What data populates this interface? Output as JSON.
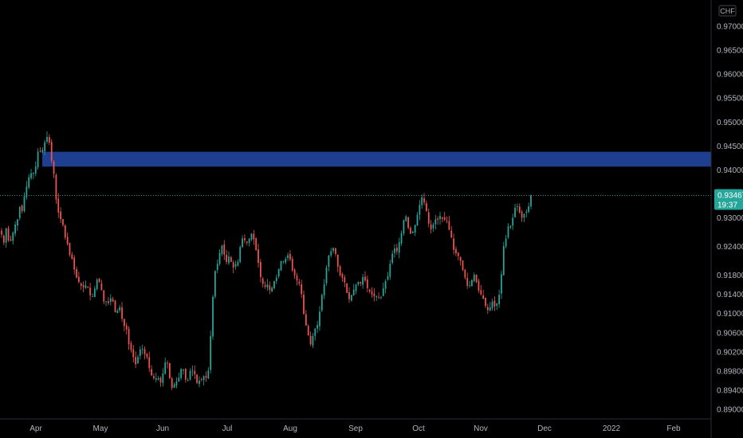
{
  "chart_data": {
    "type": "candlestick",
    "currency": "CHF",
    "ylim": [
      0.888,
      0.9755
    ],
    "y_ticks": [
      "0.97000",
      "0.96500",
      "0.96000",
      "0.95500",
      "0.95000",
      "0.94500",
      "0.94000",
      "0.93000",
      "0.92400",
      "0.91800",
      "0.91400",
      "0.91000",
      "0.90600",
      "0.90200",
      "0.89800",
      "0.89400",
      "0.89000"
    ],
    "x_ticks": [
      "Apr",
      "May",
      "Jun",
      "Jul",
      "Aug",
      "Sep",
      "Oct",
      "Nov",
      "Dec",
      "2022",
      "Feb"
    ],
    "last_price": "0.93467",
    "countdown": "19:37",
    "zone": {
      "low": 0.9407,
      "high": 0.9438,
      "color": "#1e3f8f"
    },
    "colors": {
      "up": "#26a69a",
      "down": "#ef5350",
      "background": "#000000",
      "axis_text": "#b2b5be",
      "price_label": "#26a69a"
    },
    "close": [
      0.9265,
      0.9248,
      0.9278,
      0.9253,
      0.9252,
      0.9269,
      0.9286,
      0.9297,
      0.9323,
      0.9314,
      0.9345,
      0.9365,
      0.9385,
      0.9393,
      0.9394,
      0.9407,
      0.9438,
      0.9438,
      0.9442,
      0.9458,
      0.9469,
      0.9457,
      0.9419,
      0.9392,
      0.9338,
      0.9311,
      0.9297,
      0.9285,
      0.9259,
      0.9245,
      0.9223,
      0.9214,
      0.9192,
      0.9175,
      0.9166,
      0.9158,
      0.9155,
      0.9159,
      0.9154,
      0.9138,
      0.9136,
      0.9152,
      0.9171,
      0.9166,
      0.9149,
      0.9125,
      0.9126,
      0.9122,
      0.9132,
      0.9125,
      0.9103,
      0.9106,
      0.9113,
      0.9089,
      0.9074,
      0.9067,
      0.9036,
      0.9024,
      0.9009,
      0.8994,
      0.9009,
      0.9025,
      0.9026,
      0.9015,
      0.9009,
      0.8986,
      0.8971,
      0.8965,
      0.8965,
      0.8965,
      0.8956,
      0.8975,
      0.8998,
      0.8996,
      0.8965,
      0.8945,
      0.8952,
      0.8958,
      0.8966,
      0.8984,
      0.8983,
      0.8962,
      0.8961,
      0.898,
      0.8981,
      0.8973,
      0.8955,
      0.896,
      0.8962,
      0.8969,
      0.8966,
      0.8981,
      0.9053,
      0.9135,
      0.9189,
      0.9204,
      0.9227,
      0.9242,
      0.9223,
      0.9208,
      0.9219,
      0.9208,
      0.9196,
      0.9203,
      0.9208,
      0.9239,
      0.9257,
      0.9253,
      0.9248,
      0.9257,
      0.9267,
      0.9255,
      0.9232,
      0.9206,
      0.9176,
      0.9162,
      0.9156,
      0.9161,
      0.9149,
      0.9154,
      0.9168,
      0.9175,
      0.9193,
      0.9209,
      0.9209,
      0.9214,
      0.9222,
      0.9213,
      0.919,
      0.918,
      0.9169,
      0.9163,
      0.9141,
      0.9099,
      0.9075,
      0.9054,
      0.9036,
      0.9053,
      0.9069,
      0.9076,
      0.9104,
      0.9139,
      0.9161,
      0.9196,
      0.9221,
      0.923,
      0.9237,
      0.9225,
      0.9198,
      0.918,
      0.9175,
      0.9165,
      0.9143,
      0.913,
      0.9139,
      0.915,
      0.916,
      0.9166,
      0.9163,
      0.9176,
      0.9169,
      0.9153,
      0.9146,
      0.914,
      0.9136,
      0.9136,
      0.9134,
      0.9134,
      0.9153,
      0.9168,
      0.9178,
      0.9204,
      0.9225,
      0.9236,
      0.923,
      0.9249,
      0.9268,
      0.9295,
      0.9303,
      0.9279,
      0.9267,
      0.9271,
      0.9285,
      0.9306,
      0.9327,
      0.9343,
      0.9332,
      0.9314,
      0.9288,
      0.9276,
      0.9286,
      0.9297,
      0.9296,
      0.9304,
      0.9298,
      0.9296,
      0.9292,
      0.9275,
      0.9259,
      0.9233,
      0.9226,
      0.922,
      0.921,
      0.9191,
      0.9175,
      0.9158,
      0.9159,
      0.917,
      0.9181,
      0.9166,
      0.9148,
      0.914,
      0.9131,
      0.9116,
      0.9107,
      0.9113,
      0.9125,
      0.9115,
      0.9121,
      0.9139,
      0.9182,
      0.9241,
      0.9257,
      0.9282,
      0.9283,
      0.93,
      0.9321,
      0.9324,
      0.9311,
      0.93,
      0.9308,
      0.9313,
      0.9324,
      0.9347
    ]
  }
}
